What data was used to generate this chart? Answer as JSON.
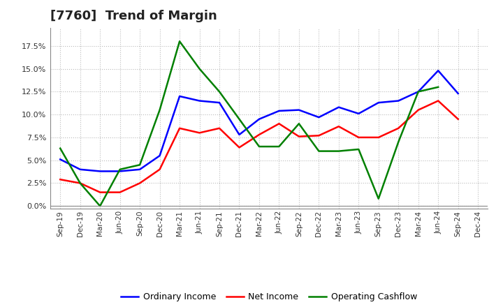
{
  "title": "[7760]  Trend of Margin",
  "x_labels": [
    "Sep-19",
    "Dec-19",
    "Mar-20",
    "Jun-20",
    "Sep-20",
    "Dec-20",
    "Mar-21",
    "Jun-21",
    "Sep-21",
    "Dec-21",
    "Mar-22",
    "Jun-22",
    "Sep-22",
    "Dec-22",
    "Mar-23",
    "Jun-23",
    "Sep-23",
    "Dec-23",
    "Mar-24",
    "Jun-24",
    "Sep-24",
    "Dec-24"
  ],
  "ordinary_income": [
    5.1,
    4.0,
    3.8,
    3.8,
    4.0,
    5.5,
    12.0,
    11.5,
    11.3,
    7.8,
    9.5,
    10.4,
    10.5,
    9.7,
    10.8,
    10.1,
    11.3,
    11.5,
    12.5,
    14.8,
    12.3,
    null
  ],
  "net_income": [
    2.9,
    2.5,
    1.5,
    1.5,
    2.5,
    4.0,
    8.5,
    8.0,
    8.5,
    6.4,
    7.8,
    9.0,
    7.6,
    7.7,
    8.7,
    7.5,
    7.5,
    8.5,
    10.5,
    11.5,
    9.5,
    null
  ],
  "operating_cashflow": [
    6.3,
    2.5,
    0.0,
    4.0,
    4.5,
    10.5,
    18.0,
    15.0,
    12.5,
    9.5,
    6.5,
    6.5,
    9.0,
    6.0,
    6.0,
    6.2,
    0.8,
    7.0,
    12.5,
    13.0,
    null,
    null
  ],
  "colors": {
    "ordinary_income": "#0000FF",
    "net_income": "#FF0000",
    "operating_cashflow": "#008000"
  },
  "ylim": [
    -0.3,
    19.5
  ],
  "yticks": [
    0.0,
    2.5,
    5.0,
    7.5,
    10.0,
    12.5,
    15.0,
    17.5
  ],
  "background_color": "#FFFFFF",
  "grid_color": "#AAAAAA",
  "title_fontsize": 13,
  "legend_labels": [
    "Ordinary Income",
    "Net Income",
    "Operating Cashflow"
  ]
}
